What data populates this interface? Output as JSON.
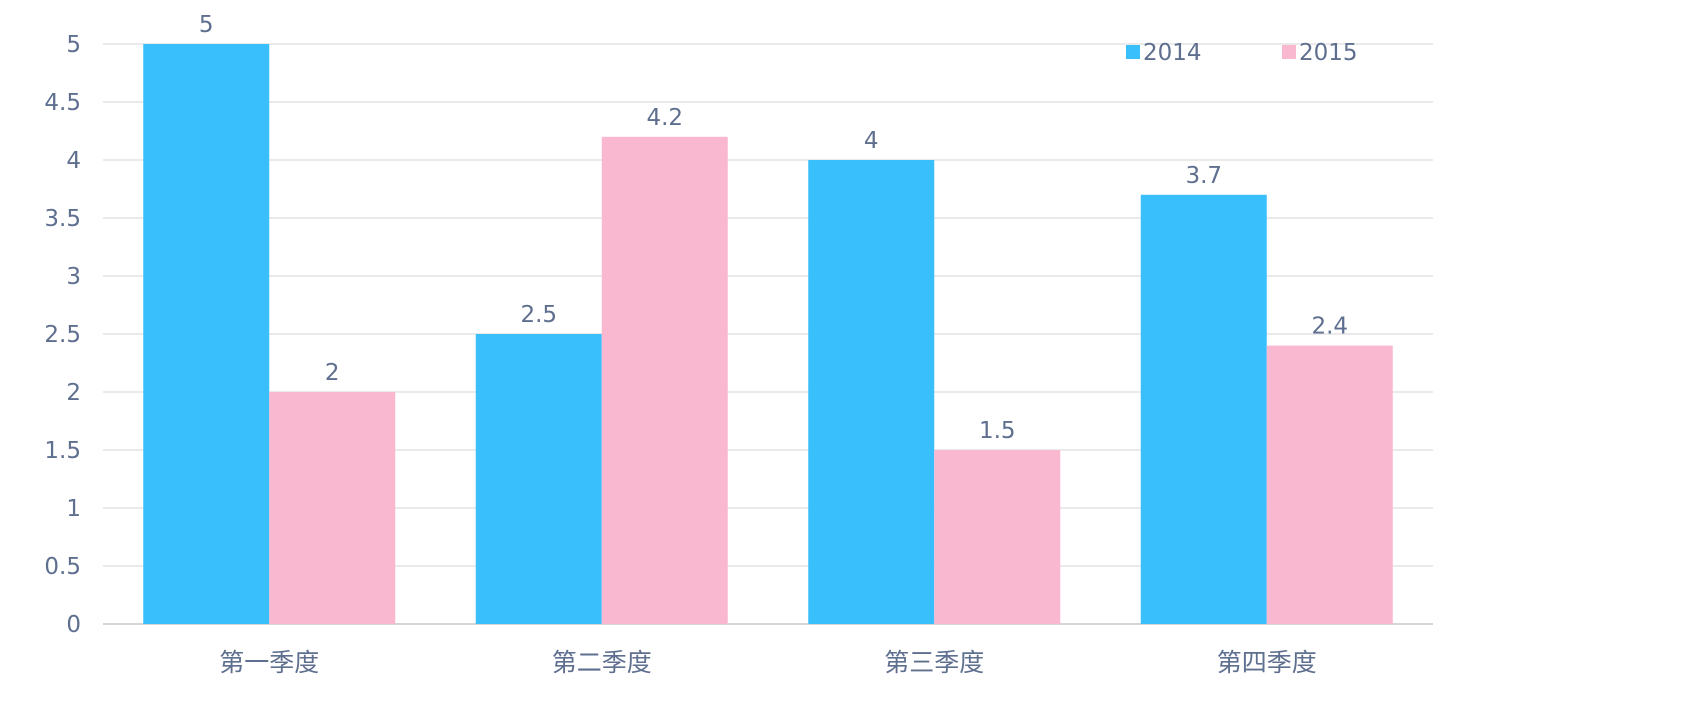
{
  "chart_data": {
    "type": "bar",
    "title": "",
    "xlabel": "",
    "ylabel": "",
    "categories": [
      "第一季度",
      "第二季度",
      "第三季度",
      "第四季度"
    ],
    "series": [
      {
        "name": "2014",
        "values": [
          5,
          2.5,
          4,
          3.7
        ],
        "color": "#38bffc"
      },
      {
        "name": "2015",
        "values": [
          2,
          4.2,
          1.5,
          2.4
        ],
        "color": "#f9b8cf"
      }
    ],
    "value_labels": [
      [
        "5",
        "2.5",
        "4",
        "3.7"
      ],
      [
        "2",
        "4.2",
        "1.5",
        "2.4"
      ]
    ],
    "ylim": [
      0,
      5
    ],
    "yticks": [
      "0",
      "0.5",
      "1",
      "1.5",
      "2",
      "2.5",
      "3",
      "3.5",
      "4",
      "4.5",
      "5"
    ],
    "grid": true,
    "legend_position": "top-right",
    "colors": {
      "text": "#5f6f8f",
      "grid": "#e3e3e3",
      "axis": "#d6d6d6"
    }
  }
}
